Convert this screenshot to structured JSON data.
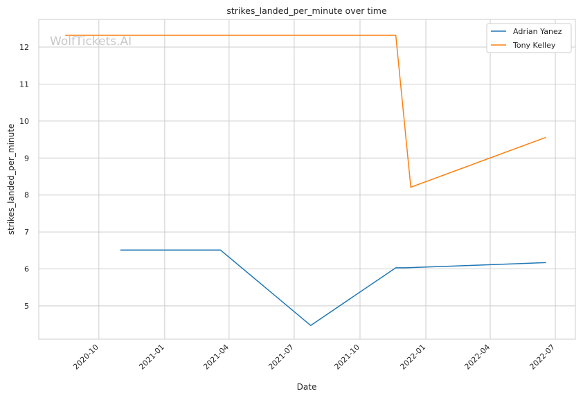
{
  "chart_data": {
    "type": "line",
    "title": "strikes_landed_per_minute over time",
    "xlabel": "Date",
    "ylabel": "strikes_landed_per_minute",
    "watermark": "WolfTickets.AI",
    "x_axis": "date",
    "xlim": [
      "2020-07-09",
      "2022-07-29"
    ],
    "ylim": [
      4.1,
      12.75
    ],
    "x_ticks": [
      "2020-10",
      "2021-01",
      "2021-04",
      "2021-07",
      "2021-10",
      "2022-01",
      "2022-04",
      "2022-07"
    ],
    "y_ticks": [
      5,
      6,
      7,
      8,
      9,
      10,
      11,
      12
    ],
    "grid": true,
    "legend_position": "top-right",
    "series": [
      {
        "name": "Adrian Yanez",
        "color": "#1f77b4",
        "points": [
          {
            "x": "2020-10-31",
            "y": 6.51
          },
          {
            "x": "2021-03-20",
            "y": 6.51
          },
          {
            "x": "2021-07-24",
            "y": 4.47
          },
          {
            "x": "2021-11-20",
            "y": 6.03
          },
          {
            "x": "2021-12-04",
            "y": 6.03
          },
          {
            "x": "2022-06-18",
            "y": 6.17
          }
        ]
      },
      {
        "name": "Tony Kelley",
        "color": "#ff7f0e",
        "points": [
          {
            "x": "2020-08-15",
            "y": 12.32
          },
          {
            "x": "2021-11-20",
            "y": 12.32
          },
          {
            "x": "2021-12-11",
            "y": 8.21
          },
          {
            "x": "2022-06-18",
            "y": 9.56
          }
        ]
      }
    ]
  }
}
